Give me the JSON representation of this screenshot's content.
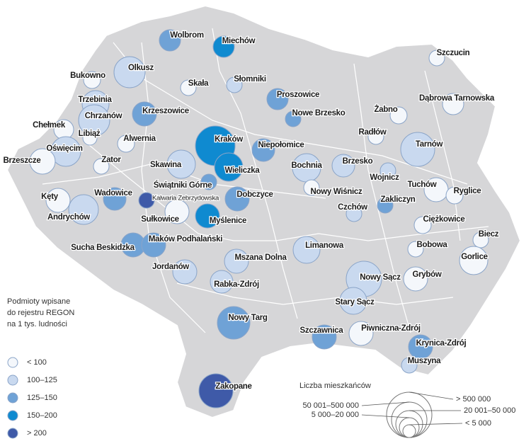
{
  "towns": [
    {
      "label": "Wolbrom",
      "color": "#6fa2d6"
    },
    {
      "label": "Miechów",
      "color": "#0f8ad0"
    },
    {
      "label": "Szczucin",
      "color": "#f4f7fb"
    },
    {
      "label": "Bukowno",
      "color": "#f4f7fb"
    },
    {
      "label": "Olkusz",
      "color": "#c9d9ef"
    },
    {
      "label": "Skała",
      "color": "#f4f7fb"
    },
    {
      "label": "Słomniki",
      "color": "#c9d9ef"
    },
    {
      "label": "Proszowice",
      "color": "#6fa2d6"
    },
    {
      "label": "Dąbrowa Tarnowska",
      "color": "#f4f7fb"
    },
    {
      "label": "Trzebinia",
      "color": "#c9d9ef"
    },
    {
      "label": "Chrzanów",
      "color": "#c9d9ef"
    },
    {
      "label": "Krzeszowice",
      "color": "#6fa2d6"
    },
    {
      "label": "Nowe Brzesko",
      "color": "#6fa2d6"
    },
    {
      "label": "Żabno",
      "color": "#f4f7fb"
    },
    {
      "label": "Chełmek",
      "color": "#f4f7fb"
    },
    {
      "label": "Libiąż",
      "color": "#f4f7fb"
    },
    {
      "label": "Oświęcim",
      "color": "#c9d9ef"
    },
    {
      "label": "Alwernia",
      "color": "#f4f7fb"
    },
    {
      "label": "Kraków",
      "color": "#0f8ad0"
    },
    {
      "label": "Radłów",
      "color": "#f4f7fb"
    },
    {
      "label": "Niepołomice",
      "color": "#6fa2d6"
    },
    {
      "label": "Tarnów",
      "color": "#c9d9ef"
    },
    {
      "label": "Brzeszcze",
      "color": "#f4f7fb"
    },
    {
      "label": "Zator",
      "color": "#f4f7fb"
    },
    {
      "label": "Skawina",
      "color": "#c9d9ef"
    },
    {
      "label": "Wieliczka",
      "color": "#0f8ad0"
    },
    {
      "label": "Bochnia",
      "color": "#c9d9ef"
    },
    {
      "label": "Brzesko",
      "color": "#c9d9ef"
    },
    {
      "label": "Wojnicz",
      "color": "#c9d9ef"
    },
    {
      "label": "Świątniki Górne",
      "color": "#6fa2d6"
    },
    {
      "label": "Kęty",
      "color": "#f4f7fb"
    },
    {
      "label": "Wadowice",
      "color": "#6fa2d6"
    },
    {
      "label": "Kalwaria Zebrzydowska",
      "color": "#3f5aa8"
    },
    {
      "label": "Dobczyce",
      "color": "#6fa2d6"
    },
    {
      "label": "Nowy Wiśnicz",
      "color": "#f4f7fb"
    },
    {
      "label": "Tuchów",
      "color": "#f4f7fb"
    },
    {
      "label": "Ryglice",
      "color": "#f4f7fb"
    },
    {
      "label": "Zakliczyn",
      "color": "#6fa2d6"
    },
    {
      "label": "Andrychów",
      "color": "#c9d9ef"
    },
    {
      "label": "Sułkowice",
      "color": "#f4f7fb"
    },
    {
      "label": "Myślenice",
      "color": "#0f8ad0"
    },
    {
      "label": "Czchów",
      "color": "#c9d9ef"
    },
    {
      "label": "Ciężkowice",
      "color": "#f4f7fb"
    },
    {
      "label": "Biecz",
      "color": "#f4f7fb"
    },
    {
      "label": "Sucha Beskidzka",
      "color": "#6fa2d6"
    },
    {
      "label": "Maków Podhalański",
      "color": "#6fa2d6"
    },
    {
      "label": "Bobowa",
      "color": "#f4f7fb"
    },
    {
      "label": "Limanowa",
      "color": "#c9d9ef"
    },
    {
      "label": "Gorlice",
      "color": "#f4f7fb"
    },
    {
      "label": "Mszana Dolna",
      "color": "#c9d9ef"
    },
    {
      "label": "Jordanów",
      "color": "#c9d9ef"
    },
    {
      "label": "Grybów",
      "color": "#f4f7fb"
    },
    {
      "label": "Nowy Sącz",
      "color": "#c9d9ef"
    },
    {
      "label": "Rabka-Zdrój",
      "color": "#c9d9ef"
    },
    {
      "label": "Stary Sącz",
      "color": "#c9d9ef"
    },
    {
      "label": "Nowy Targ",
      "color": "#6fa2d6"
    },
    {
      "label": "Szczawnica",
      "color": "#6fa2d6"
    },
    {
      "label": "Piwniczna-Zdrój",
      "color": "#f4f7fb"
    },
    {
      "label": "Krynica-Zdrój",
      "color": "#6fa2d6"
    },
    {
      "label": "Muszyna",
      "color": "#c9d9ef"
    },
    {
      "label": "Zakopane",
      "color": "#3f5aa8"
    }
  ],
  "legend": {
    "title": [
      "Podmioty wpisane",
      "do rejestru REGON",
      "na 1 tys. ludności"
    ],
    "classes": [
      {
        "label": "< 100",
        "color": "#f4f7fb"
      },
      {
        "label": "100–125",
        "color": "#c9d9ef"
      },
      {
        "label": "125–150",
        "color": "#6fa2d6"
      },
      {
        "label": "150–200",
        "color": "#0f8ad0"
      },
      {
        "label": "> 200",
        "color": "#3f5aa8"
      }
    ]
  },
  "size_legend": {
    "title": "Liczba mieszkańców",
    "classes": [
      "> 500 000",
      "50 001–500 000",
      "20 001–50 000",
      "5 000–20 000",
      "< 5 000"
    ]
  }
}
